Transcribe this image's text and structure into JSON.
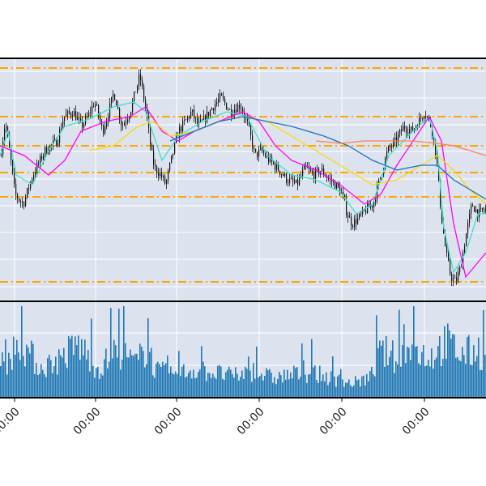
{
  "chart_data": {
    "type": "candlestick",
    "panels": [
      "price",
      "volume"
    ],
    "x_tick_labels": [
      "00:00",
      "00:00",
      "00:00",
      "00:00",
      "00:00",
      "00:00"
    ],
    "grid": true,
    "legend": "none",
    "price_ylim": [
      0,
      100
    ],
    "volume_ylim": [
      0,
      100
    ],
    "horizontal_levels": [
      96,
      76,
      64,
      53,
      43,
      8
    ],
    "colors": {
      "plot_bg": "#dce3ee",
      "grid": "#ffffff",
      "candle": "#111111",
      "level_line": "#ffa500",
      "volume_bar": "#1f77b4",
      "ma_fast": "#40e0d0",
      "ma_medium": "#ff00ff",
      "ma_slow": "#ffd700",
      "ma_slower": "#1f6fc0",
      "ma_slowest": "#ff7f50"
    },
    "close_anchors": [
      [
        0,
        60
      ],
      [
        6,
        74
      ],
      [
        12,
        60
      ],
      [
        18,
        44
      ],
      [
        28,
        40
      ],
      [
        40,
        52
      ],
      [
        55,
        62
      ],
      [
        70,
        66
      ],
      [
        78,
        76
      ],
      [
        90,
        78
      ],
      [
        100,
        72
      ],
      [
        108,
        76
      ],
      [
        116,
        82
      ],
      [
        120,
        78
      ],
      [
        126,
        70
      ],
      [
        132,
        76
      ],
      [
        140,
        86
      ],
      [
        150,
        72
      ],
      [
        160,
        78
      ],
      [
        172,
        93
      ],
      [
        180,
        78
      ],
      [
        186,
        62
      ],
      [
        190,
        55
      ],
      [
        198,
        52
      ],
      [
        204,
        48
      ],
      [
        212,
        60
      ],
      [
        220,
        70
      ],
      [
        228,
        74
      ],
      [
        236,
        78
      ],
      [
        244,
        72
      ],
      [
        252,
        75
      ],
      [
        262,
        80
      ],
      [
        272,
        84
      ],
      [
        284,
        78
      ],
      [
        296,
        81
      ],
      [
        306,
        72
      ],
      [
        314,
        60
      ],
      [
        322,
        62
      ],
      [
        332,
        58
      ],
      [
        344,
        54
      ],
      [
        354,
        50
      ],
      [
        366,
        48
      ],
      [
        376,
        55
      ],
      [
        386,
        52
      ],
      [
        396,
        54
      ],
      [
        406,
        50
      ],
      [
        414,
        48
      ],
      [
        422,
        44
      ],
      [
        428,
        36
      ],
      [
        434,
        32
      ],
      [
        442,
        34
      ],
      [
        452,
        38
      ],
      [
        460,
        40
      ],
      [
        468,
        50
      ],
      [
        478,
        62
      ],
      [
        488,
        66
      ],
      [
        498,
        72
      ],
      [
        508,
        70
      ],
      [
        516,
        74
      ],
      [
        524,
        78
      ],
      [
        532,
        72
      ],
      [
        538,
        60
      ],
      [
        544,
        36
      ],
      [
        550,
        20
      ],
      [
        556,
        10
      ],
      [
        562,
        8
      ],
      [
        568,
        14
      ],
      [
        574,
        26
      ],
      [
        582,
        40
      ],
      [
        590,
        36
      ],
      [
        600,
        38
      ]
    ],
    "volume_anchors": [
      [
        0,
        30
      ],
      [
        24,
        64
      ],
      [
        48,
        34
      ],
      [
        72,
        42
      ],
      [
        96,
        60
      ],
      [
        120,
        32
      ],
      [
        144,
        52
      ],
      [
        168,
        38
      ],
      [
        180,
        58
      ],
      [
        192,
        30
      ],
      [
        216,
        26
      ],
      [
        240,
        32
      ],
      [
        264,
        28
      ],
      [
        288,
        24
      ],
      [
        312,
        30
      ],
      [
        336,
        22
      ],
      [
        360,
        26
      ],
      [
        384,
        28
      ],
      [
        408,
        22
      ],
      [
        432,
        16
      ],
      [
        456,
        22
      ],
      [
        470,
        52
      ],
      [
        490,
        44
      ],
      [
        510,
        54
      ],
      [
        530,
        46
      ],
      [
        550,
        62
      ],
      [
        570,
        48
      ],
      [
        590,
        54
      ],
      [
        600,
        38
      ]
    ],
    "moving_averages": [
      {
        "key": "ma_fast",
        "points": [
          [
            0,
            60
          ],
          [
            10,
            70
          ],
          [
            20,
            52
          ],
          [
            40,
            48
          ],
          [
            60,
            62
          ],
          [
            80,
            72
          ],
          [
            110,
            75
          ],
          [
            140,
            80
          ],
          [
            165,
            82
          ],
          [
            180,
            78
          ],
          [
            200,
            58
          ],
          [
            220,
            68
          ],
          [
            250,
            74
          ],
          [
            280,
            78
          ],
          [
            305,
            76
          ],
          [
            330,
            60
          ],
          [
            360,
            52
          ],
          [
            390,
            50
          ],
          [
            420,
            45
          ],
          [
            440,
            36
          ],
          [
            460,
            40
          ],
          [
            480,
            60
          ],
          [
            510,
            70
          ],
          [
            530,
            76
          ],
          [
            540,
            62
          ],
          [
            548,
            30
          ],
          [
            560,
            12
          ],
          [
            575,
            20
          ],
          [
            590,
            36
          ],
          [
            600,
            36
          ]
        ]
      },
      {
        "key": "ma_medium",
        "points": [
          [
            0,
            64
          ],
          [
            30,
            60
          ],
          [
            60,
            52
          ],
          [
            80,
            58
          ],
          [
            100,
            70
          ],
          [
            130,
            74
          ],
          [
            160,
            76
          ],
          [
            180,
            80
          ],
          [
            200,
            70
          ],
          [
            220,
            66
          ],
          [
            240,
            70
          ],
          [
            270,
            74
          ],
          [
            300,
            78
          ],
          [
            320,
            74
          ],
          [
            340,
            64
          ],
          [
            360,
            58
          ],
          [
            390,
            54
          ],
          [
            420,
            48
          ],
          [
            450,
            40
          ],
          [
            470,
            44
          ],
          [
            490,
            56
          ],
          [
            510,
            66
          ],
          [
            530,
            76
          ],
          [
            545,
            66
          ],
          [
            560,
            32
          ],
          [
            575,
            10
          ],
          [
            590,
            16
          ],
          [
            600,
            20
          ]
        ]
      },
      {
        "key": "ma_slow",
        "points": [
          [
            110,
            62
          ],
          [
            140,
            64
          ],
          [
            170,
            72
          ],
          [
            190,
            74
          ],
          [
            210,
            68
          ],
          [
            240,
            70
          ],
          [
            270,
            74
          ],
          [
            300,
            76
          ],
          [
            330,
            74
          ],
          [
            360,
            68
          ],
          [
            400,
            60
          ],
          [
            430,
            54
          ],
          [
            460,
            48
          ],
          [
            490,
            50
          ],
          [
            520,
            56
          ],
          [
            540,
            60
          ],
          [
            560,
            54
          ],
          [
            580,
            46
          ],
          [
            600,
            40
          ]
        ]
      },
      {
        "key": "ma_slower",
        "points": [
          [
            210,
            66
          ],
          [
            240,
            70
          ],
          [
            270,
            74
          ],
          [
            300,
            76
          ],
          [
            330,
            74
          ],
          [
            360,
            72
          ],
          [
            400,
            68
          ],
          [
            430,
            64
          ],
          [
            460,
            58
          ],
          [
            490,
            54
          ],
          [
            520,
            56
          ],
          [
            540,
            56
          ],
          [
            560,
            50
          ],
          [
            580,
            46
          ],
          [
            600,
            42
          ]
        ]
      },
      {
        "key": "ma_slowest",
        "points": [
          [
            390,
            66
          ],
          [
            420,
            65
          ],
          [
            450,
            66
          ],
          [
            480,
            66
          ],
          [
            510,
            66
          ],
          [
            540,
            65
          ],
          [
            560,
            64
          ],
          [
            580,
            62
          ],
          [
            600,
            60
          ]
        ]
      }
    ]
  }
}
